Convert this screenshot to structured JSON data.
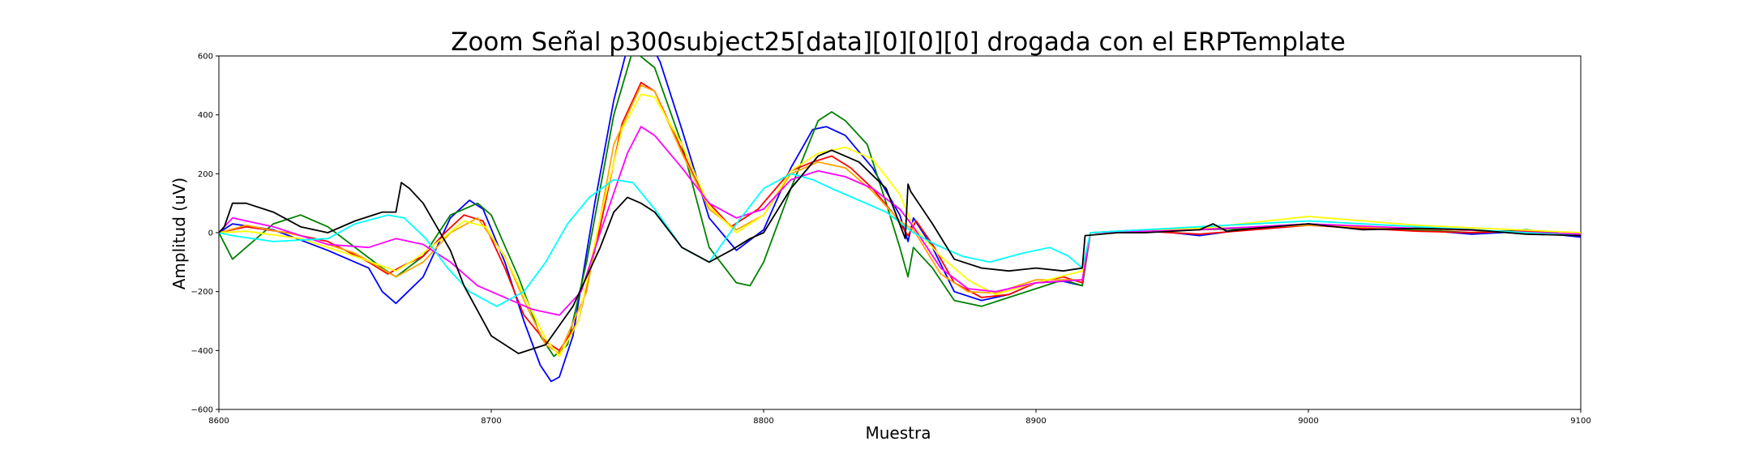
{
  "chart_data": {
    "type": "line",
    "title": "Zoom Señal p300subject25[data][0][0][0] drogada con el ERPTemplate",
    "xlabel": "Muestra",
    "ylabel": "Amplitud (uV)",
    "xlim": [
      8600,
      9100
    ],
    "ylim": [
      -600,
      600
    ],
    "xticks": [
      8600,
      8700,
      8800,
      8900,
      9000,
      9100
    ],
    "xtick_labels": [
      "8600",
      "8700",
      "8800",
      "8900",
      "9000",
      "9100"
    ],
    "yticks": [
      -600,
      -400,
      -200,
      0,
      200,
      400,
      600
    ],
    "ytick_labels": [
      "−600",
      "−400",
      "−200",
      "0",
      "200",
      "400",
      "600"
    ],
    "grid": false,
    "legend": "none",
    "series": [
      {
        "color": "#0000ff",
        "x": [
          8600,
          8605,
          8620,
          8640,
          8655,
          8660,
          8665,
          8675,
          8685,
          8692,
          8697,
          8705,
          8712,
          8718,
          8722,
          8725,
          8730,
          8738,
          8745,
          8752,
          8758,
          8762,
          8770,
          8780,
          8790,
          8800,
          8810,
          8818,
          8823,
          8830,
          8840,
          8850,
          8853,
          8855,
          8862,
          8870,
          8880,
          8890,
          8900,
          8910,
          8917,
          8920,
          8940,
          8960,
          8980,
          9000,
          9020,
          9040,
          9060,
          9080,
          9100
        ],
        "y": [
          0,
          30,
          10,
          -60,
          -120,
          -200,
          -240,
          -150,
          50,
          110,
          80,
          -100,
          -300,
          -450,
          -505,
          -490,
          -350,
          100,
          450,
          700,
          650,
          580,
          350,
          50,
          -60,
          10,
          220,
          350,
          360,
          330,
          220,
          60,
          -30,
          50,
          -50,
          -200,
          -230,
          -210,
          -170,
          -165,
          -180,
          0,
          10,
          -10,
          15,
          30,
          20,
          10,
          -5,
          5,
          -15
        ]
      },
      {
        "color": "#008000",
        "x": [
          8600,
          8605,
          8620,
          8630,
          8640,
          8660,
          8665,
          8675,
          8685,
          8695,
          8700,
          8710,
          8718,
          8723,
          8728,
          8735,
          8745,
          8752,
          8760,
          8770,
          8780,
          8790,
          8795,
          8800,
          8810,
          8820,
          8825,
          8830,
          8838,
          8845,
          8850,
          8853,
          8855,
          8862,
          8870,
          8880,
          8890,
          8900,
          8910,
          8917,
          8920,
          8940,
          8960,
          8980,
          9000,
          9020,
          9040,
          9060,
          9080,
          9100
        ],
        "y": [
          0,
          -90,
          30,
          60,
          20,
          -120,
          -150,
          -80,
          60,
          100,
          60,
          -150,
          -350,
          -420,
          -380,
          -100,
          400,
          620,
          560,
          300,
          -50,
          -170,
          -180,
          -100,
          150,
          380,
          410,
          380,
          300,
          100,
          -50,
          -150,
          -50,
          -120,
          -230,
          -250,
          -220,
          -190,
          -160,
          -180,
          0,
          5,
          10,
          15,
          30,
          15,
          10,
          0,
          10,
          -10
        ]
      },
      {
        "color": "#ff0000",
        "x": [
          8600,
          8610,
          8625,
          8640,
          8655,
          8662,
          8668,
          8675,
          8683,
          8690,
          8697,
          8705,
          8712,
          8720,
          8725,
          8732,
          8740,
          8748,
          8755,
          8760,
          8768,
          8778,
          8788,
          8798,
          8810,
          8818,
          8825,
          8832,
          8840,
          8848,
          8853,
          8856,
          8862,
          8870,
          8880,
          8890,
          8900,
          8910,
          8917,
          8920,
          8940,
          8960,
          8980,
          9000,
          9020,
          9040,
          9060,
          9080,
          9100
        ],
        "y": [
          0,
          20,
          0,
          -30,
          -100,
          -140,
          -110,
          -80,
          0,
          60,
          40,
          -120,
          -280,
          -370,
          -400,
          -300,
          20,
          370,
          510,
          480,
          320,
          120,
          20,
          80,
          210,
          240,
          260,
          220,
          150,
          60,
          -10,
          40,
          -40,
          -170,
          -220,
          -210,
          -170,
          -150,
          -170,
          0,
          5,
          -5,
          10,
          25,
          15,
          5,
          0,
          5,
          -10
        ]
      },
      {
        "color": "#ffa500",
        "x": [
          8600,
          8610,
          8630,
          8650,
          8665,
          8675,
          8685,
          8695,
          8705,
          8713,
          8720,
          8725,
          8735,
          8745,
          8755,
          8760,
          8770,
          8780,
          8790,
          8800,
          8810,
          8820,
          8830,
          8840,
          8850,
          8855,
          8865,
          8875,
          8885,
          8900,
          8917,
          8920,
          9000,
          9100
        ],
        "y": [
          0,
          25,
          -10,
          -70,
          -150,
          -100,
          0,
          50,
          -80,
          -250,
          -380,
          -410,
          -200,
          300,
          500,
          480,
          270,
          80,
          10,
          60,
          200,
          240,
          220,
          140,
          40,
          10,
          -140,
          -200,
          -205,
          -160,
          -160,
          0,
          25,
          -5
        ]
      },
      {
        "color": "#ffff00",
        "x": [
          8600,
          8610,
          8630,
          8650,
          8665,
          8672,
          8682,
          8690,
          8698,
          8706,
          8714,
          8720,
          8725,
          8732,
          8740,
          8748,
          8755,
          8760,
          8770,
          8780,
          8790,
          8800,
          8810,
          8820,
          8830,
          8840,
          8850,
          8855,
          8865,
          8875,
          8885,
          8900,
          8917,
          8920,
          8960,
          9000,
          9040,
          9100
        ],
        "y": [
          0,
          5,
          -20,
          -80,
          -130,
          -90,
          -20,
          40,
          20,
          -100,
          -250,
          -360,
          -420,
          -300,
          50,
          350,
          470,
          460,
          300,
          90,
          0,
          60,
          210,
          270,
          290,
          250,
          130,
          20,
          -80,
          -160,
          -210,
          -170,
          -130,
          0,
          15,
          55,
          25,
          0
        ]
      },
      {
        "color": "#ff00ff",
        "x": [
          8600,
          8605,
          8620,
          8640,
          8655,
          8665,
          8675,
          8685,
          8695,
          8705,
          8715,
          8725,
          8733,
          8740,
          8750,
          8755,
          8760,
          8770,
          8780,
          8790,
          8800,
          8810,
          8820,
          8830,
          8840,
          8850,
          8855,
          8865,
          8875,
          8885,
          8900,
          8917,
          8920,
          8960,
          9000,
          9040,
          9100
        ],
        "y": [
          0,
          50,
          20,
          -40,
          -50,
          -20,
          -40,
          -100,
          -180,
          -220,
          -260,
          -280,
          -200,
          0,
          270,
          360,
          330,
          220,
          100,
          50,
          80,
          180,
          210,
          190,
          150,
          80,
          20,
          -120,
          -190,
          -200,
          -170,
          -160,
          0,
          10,
          30,
          15,
          -5
        ]
      },
      {
        "color": "#00ffff",
        "x": [
          8600,
          8605,
          8620,
          8640,
          8650,
          8662,
          8668,
          8676,
          8684,
          8692,
          8702,
          8712,
          8720,
          8728,
          8736,
          8745,
          8752,
          8760,
          8770,
          8780,
          8790,
          8800,
          8810,
          8818,
          8825,
          8835,
          8845,
          8855,
          8863,
          8873,
          8883,
          8895,
          8905,
          8912,
          8917,
          8920,
          8960,
          9000,
          9040,
          9100
        ],
        "y": [
          0,
          -10,
          -30,
          -20,
          30,
          60,
          50,
          -20,
          -120,
          -200,
          -250,
          -200,
          -100,
          30,
          120,
          180,
          170,
          80,
          -50,
          -100,
          30,
          150,
          200,
          180,
          150,
          110,
          70,
          0,
          -40,
          -80,
          -100,
          -70,
          -50,
          -80,
          -120,
          0,
          20,
          40,
          20,
          -10
        ]
      },
      {
        "color": "#000000",
        "x": [
          8600,
          8602,
          8605,
          8610,
          8620,
          8630,
          8640,
          8650,
          8660,
          8665,
          8667,
          8670,
          8675,
          8680,
          8685,
          8690,
          8700,
          8710,
          8720,
          8730,
          8740,
          8745,
          8750,
          8755,
          8760,
          8770,
          8780,
          8788,
          8795,
          8800,
          8810,
          8820,
          8825,
          8835,
          8845,
          8852,
          8853,
          8854,
          8862,
          8870,
          8880,
          8890,
          8900,
          8910,
          8917,
          8918,
          8930,
          8940,
          8960,
          8965,
          8970,
          8980,
          9000,
          9020,
          9040,
          9060,
          9080,
          9100
        ],
        "y": [
          0,
          20,
          100,
          100,
          70,
          20,
          0,
          40,
          70,
          70,
          170,
          150,
          100,
          20,
          -60,
          -180,
          -350,
          -410,
          -380,
          -250,
          -50,
          70,
          120,
          100,
          70,
          -50,
          -100,
          -60,
          -20,
          0,
          150,
          260,
          280,
          240,
          150,
          -20,
          165,
          140,
          30,
          -90,
          -120,
          -130,
          -120,
          -130,
          -120,
          -10,
          0,
          0,
          10,
          30,
          5,
          15,
          30,
          10,
          15,
          10,
          -5,
          -10
        ]
      }
    ]
  }
}
